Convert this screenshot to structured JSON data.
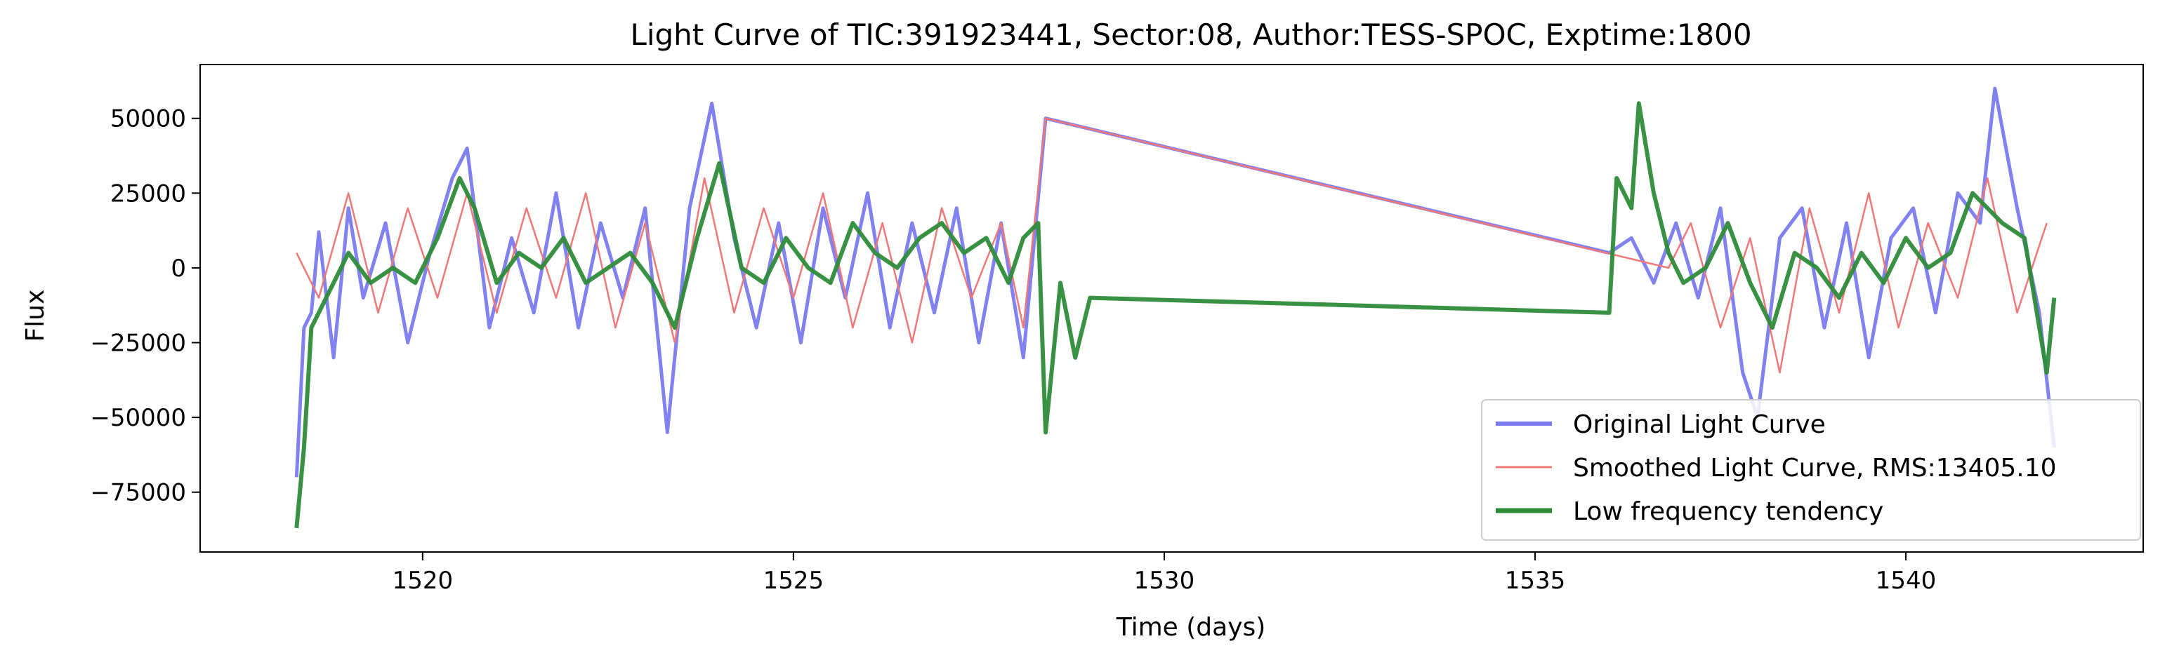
{
  "chart_data": {
    "type": "line",
    "title": "Light Curve of TIC:391923441, Sector:08, Author:TESS-SPOC, Exptime:1800",
    "xlabel": "Time (days)",
    "ylabel": "Flux",
    "xlim": [
      1517.0,
      1543.2
    ],
    "ylim": [
      -95000,
      68000
    ],
    "xticks": [
      1520,
      1525,
      1530,
      1535,
      1540
    ],
    "xtick_labels": [
      "1520",
      "1525",
      "1530",
      "1535",
      "1540"
    ],
    "yticks": [
      50000,
      25000,
      0,
      -25000,
      -50000,
      -75000
    ],
    "ytick_labels": [
      "50000",
      "25000",
      "0",
      "−25000",
      "−50000",
      "−75000"
    ],
    "grid": false,
    "legend_position": "lower-right",
    "series": [
      {
        "name": "Original Light Curve",
        "color": "#7a7af0",
        "x": [
          1518.3,
          1518.4,
          1518.5,
          1518.6,
          1518.8,
          1519.0,
          1519.2,
          1519.5,
          1519.8,
          1520.1,
          1520.4,
          1520.6,
          1520.9,
          1521.2,
          1521.5,
          1521.8,
          1522.1,
          1522.4,
          1522.7,
          1523.0,
          1523.3,
          1523.6,
          1523.9,
          1524.2,
          1524.5,
          1524.8,
          1525.1,
          1525.4,
          1525.7,
          1526.0,
          1526.3,
          1526.6,
          1526.9,
          1527.2,
          1527.5,
          1527.8,
          1528.1,
          1528.4,
          1536.0,
          1536.3,
          1536.6,
          1536.9,
          1537.2,
          1537.5,
          1537.8,
          1538.0,
          1538.3,
          1538.6,
          1538.9,
          1539.2,
          1539.5,
          1539.8,
          1540.1,
          1540.4,
          1540.7,
          1541.0,
          1541.2,
          1541.5,
          1541.8,
          1542.0
        ],
        "y": [
          -70000,
          -20000,
          -15000,
          12000,
          -30000,
          20000,
          -10000,
          15000,
          -25000,
          5000,
          30000,
          40000,
          -20000,
          10000,
          -15000,
          25000,
          -20000,
          15000,
          -10000,
          20000,
          -55000,
          20000,
          55000,
          10000,
          -20000,
          15000,
          -25000,
          20000,
          -10000,
          25000,
          -20000,
          15000,
          -15000,
          20000,
          -25000,
          15000,
          -30000,
          50000,
          5000,
          10000,
          -5000,
          15000,
          -10000,
          20000,
          -35000,
          -50000,
          10000,
          20000,
          -20000,
          15000,
          -30000,
          10000,
          20000,
          -15000,
          25000,
          15000,
          60000,
          20000,
          -15000,
          -60000
        ]
      },
      {
        "name": "Smoothed Light Curve, RMS:13405.10",
        "color": "#f07878",
        "x": [
          1518.3,
          1518.6,
          1519.0,
          1519.4,
          1519.8,
          1520.2,
          1520.6,
          1521.0,
          1521.4,
          1521.8,
          1522.2,
          1522.6,
          1523.0,
          1523.4,
          1523.8,
          1524.2,
          1524.6,
          1525.0,
          1525.4,
          1525.8,
          1526.2,
          1526.6,
          1527.0,
          1527.4,
          1527.8,
          1528.1,
          1528.4,
          1536.8,
          1537.1,
          1537.5,
          1537.9,
          1538.3,
          1538.7,
          1539.1,
          1539.5,
          1539.9,
          1540.3,
          1540.7,
          1541.1,
          1541.5,
          1541.9
        ],
        "y": [
          5000,
          -10000,
          25000,
          -15000,
          20000,
          -10000,
          25000,
          -15000,
          20000,
          -10000,
          25000,
          -20000,
          15000,
          -25000,
          30000,
          -15000,
          20000,
          -10000,
          25000,
          -20000,
          15000,
          -25000,
          20000,
          -10000,
          15000,
          -20000,
          50000,
          0,
          15000,
          -20000,
          10000,
          -35000,
          20000,
          -15000,
          25000,
          -20000,
          15000,
          -10000,
          30000,
          -15000,
          15000
        ]
      },
      {
        "name": "Low frequency tendency",
        "color": "#2e8b3a",
        "x": [
          1518.3,
          1518.4,
          1518.5,
          1518.7,
          1519.0,
          1519.3,
          1519.6,
          1519.9,
          1520.2,
          1520.5,
          1520.7,
          1521.0,
          1521.3,
          1521.6,
          1521.9,
          1522.2,
          1522.5,
          1522.8,
          1523.1,
          1523.4,
          1523.7,
          1524.0,
          1524.3,
          1524.6,
          1524.9,
          1525.2,
          1525.5,
          1525.8,
          1526.1,
          1526.4,
          1526.7,
          1527.0,
          1527.3,
          1527.6,
          1527.9,
          1528.1,
          1528.3,
          1528.4,
          1528.6,
          1528.8,
          1529.0,
          1536.0,
          1536.1,
          1536.3,
          1536.4,
          1536.6,
          1536.8,
          1537.0,
          1537.3,
          1537.6,
          1537.9,
          1538.2,
          1538.5,
          1538.8,
          1539.1,
          1539.4,
          1539.7,
          1540.0,
          1540.3,
          1540.6,
          1540.9,
          1541.1,
          1541.3,
          1541.6,
          1541.9,
          1542.0
        ],
        "y": [
          -87000,
          -60000,
          -20000,
          -10000,
          5000,
          -5000,
          0,
          -5000,
          10000,
          30000,
          20000,
          -5000,
          5000,
          0,
          10000,
          -5000,
          0,
          5000,
          -5000,
          -20000,
          10000,
          35000,
          0,
          -5000,
          10000,
          0,
          -5000,
          15000,
          5000,
          0,
          10000,
          15000,
          5000,
          10000,
          -5000,
          10000,
          15000,
          -55000,
          -5000,
          -30000,
          -10000,
          -15000,
          30000,
          20000,
          55000,
          25000,
          5000,
          -5000,
          0,
          15000,
          -5000,
          -20000,
          5000,
          0,
          -10000,
          5000,
          -5000,
          10000,
          0,
          5000,
          25000,
          20000,
          15000,
          10000,
          -35000,
          -10000
        ]
      }
    ]
  }
}
